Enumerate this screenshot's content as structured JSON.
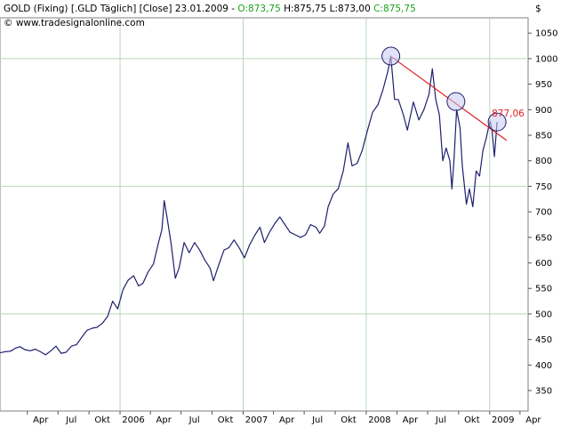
{
  "header": {
    "symbol": "GOLD (Fixing) [.GLD  Täglich] [Close]",
    "date": "23.01.2009",
    "dash": " - ",
    "open": "O:873,75",
    "high": "H:875,75",
    "low": "L:873,00",
    "close": "C:875,75",
    "watermark": "© www.tradesignalonline.com",
    "currency": "$"
  },
  "colors": {
    "price_line": "#1f1f6e",
    "trendline": "#e02020",
    "open_text": "#1aa01a",
    "close_text": "#1aa01a",
    "circle_fill": "#c8c8f0",
    "grid": "#b8d8b8",
    "annotation_text": "#e02020"
  },
  "annotation": {
    "last_value_label": "877,06"
  },
  "chart_data": {
    "type": "line",
    "title": "",
    "xlabel": "",
    "ylabel": "",
    "ylim": [
      310,
      1080
    ],
    "xlim": [
      "2005-01-10",
      "2009-04-25"
    ],
    "y_axis_side": "right",
    "y_ticks": [
      350,
      400,
      450,
      500,
      550,
      600,
      650,
      700,
      750,
      800,
      850,
      900,
      950,
      1000,
      1050
    ],
    "grid": {
      "horizontal": [
        500,
        750,
        1000
      ],
      "vertical": [
        "2006-01-01",
        "2007-01-01",
        "2008-01-01",
        "2009-01-01"
      ]
    },
    "x_ticks": [
      {
        "label": "Apr",
        "date": "2005-04-01"
      },
      {
        "label": "Jul",
        "date": "2005-07-01"
      },
      {
        "label": "Okt",
        "date": "2005-10-01"
      },
      {
        "label": "2006",
        "date": "2006-01-01"
      },
      {
        "label": "Apr",
        "date": "2006-04-01"
      },
      {
        "label": "Jul",
        "date": "2006-07-01"
      },
      {
        "label": "Okt",
        "date": "2006-10-01"
      },
      {
        "label": "2007",
        "date": "2007-01-01"
      },
      {
        "label": "Apr",
        "date": "2007-04-01"
      },
      {
        "label": "Jul",
        "date": "2007-07-01"
      },
      {
        "label": "Okt",
        "date": "2007-10-01"
      },
      {
        "label": "2008",
        "date": "2008-01-01"
      },
      {
        "label": "Apr",
        "date": "2008-04-01"
      },
      {
        "label": "Jul",
        "date": "2008-07-01"
      },
      {
        "label": "Okt",
        "date": "2008-10-01"
      },
      {
        "label": "2009",
        "date": "2009-01-01"
      },
      {
        "label": "Apr",
        "date": "2009-04-01"
      }
    ],
    "series": [
      {
        "points": [
          [
            "2005-01-10",
            424
          ],
          [
            "2005-01-25",
            426
          ],
          [
            "2005-02-10",
            427
          ],
          [
            "2005-02-25",
            433
          ],
          [
            "2005-03-10",
            436
          ],
          [
            "2005-03-25",
            430
          ],
          [
            "2005-04-10",
            428
          ],
          [
            "2005-04-25",
            431
          ],
          [
            "2005-05-10",
            426
          ],
          [
            "2005-05-25",
            420
          ],
          [
            "2005-06-10",
            428
          ],
          [
            "2005-06-25",
            437
          ],
          [
            "2005-07-10",
            423
          ],
          [
            "2005-07-25",
            425
          ],
          [
            "2005-08-10",
            437
          ],
          [
            "2005-08-25",
            440
          ],
          [
            "2005-09-10",
            455
          ],
          [
            "2005-09-25",
            468
          ],
          [
            "2005-10-10",
            472
          ],
          [
            "2005-10-25",
            474
          ],
          [
            "2005-11-10",
            482
          ],
          [
            "2005-11-25",
            495
          ],
          [
            "2005-12-10",
            525
          ],
          [
            "2005-12-25",
            510
          ],
          [
            "2006-01-10",
            548
          ],
          [
            "2006-01-25",
            566
          ],
          [
            "2006-02-10",
            575
          ],
          [
            "2006-02-25",
            555
          ],
          [
            "2006-03-10",
            560
          ],
          [
            "2006-03-25",
            582
          ],
          [
            "2006-04-10",
            598
          ],
          [
            "2006-04-25",
            640
          ],
          [
            "2006-05-05",
            665
          ],
          [
            "2006-05-12",
            722
          ],
          [
            "2006-05-20",
            690
          ],
          [
            "2006-06-01",
            640
          ],
          [
            "2006-06-14",
            570
          ],
          [
            "2006-06-25",
            590
          ],
          [
            "2006-07-10",
            640
          ],
          [
            "2006-07-25",
            620
          ],
          [
            "2006-08-10",
            640
          ],
          [
            "2006-08-25",
            625
          ],
          [
            "2006-09-10",
            605
          ],
          [
            "2006-09-25",
            590
          ],
          [
            "2006-10-05",
            565
          ],
          [
            "2006-10-20",
            595
          ],
          [
            "2006-11-05",
            625
          ],
          [
            "2006-11-20",
            630
          ],
          [
            "2006-12-05",
            645
          ],
          [
            "2006-12-20",
            630
          ],
          [
            "2007-01-05",
            610
          ],
          [
            "2007-01-20",
            635
          ],
          [
            "2007-02-05",
            655
          ],
          [
            "2007-02-20",
            670
          ],
          [
            "2007-03-05",
            640
          ],
          [
            "2007-03-20",
            660
          ],
          [
            "2007-04-05",
            677
          ],
          [
            "2007-04-20",
            690
          ],
          [
            "2007-05-05",
            675
          ],
          [
            "2007-05-20",
            660
          ],
          [
            "2007-06-05",
            655
          ],
          [
            "2007-06-20",
            650
          ],
          [
            "2007-07-05",
            655
          ],
          [
            "2007-07-20",
            675
          ],
          [
            "2007-08-05",
            670
          ],
          [
            "2007-08-16",
            658
          ],
          [
            "2007-08-30",
            672
          ],
          [
            "2007-09-10",
            710
          ],
          [
            "2007-09-25",
            735
          ],
          [
            "2007-10-10",
            745
          ],
          [
            "2007-10-25",
            780
          ],
          [
            "2007-11-08",
            835
          ],
          [
            "2007-11-20",
            790
          ],
          [
            "2007-12-05",
            795
          ],
          [
            "2007-12-20",
            820
          ],
          [
            "2008-01-05",
            860
          ],
          [
            "2008-01-20",
            895
          ],
          [
            "2008-02-05",
            910
          ],
          [
            "2008-02-20",
            940
          ],
          [
            "2008-03-05",
            975
          ],
          [
            "2008-03-14",
            1005
          ],
          [
            "2008-03-25",
            920
          ],
          [
            "2008-04-05",
            920
          ],
          [
            "2008-04-20",
            890
          ],
          [
            "2008-05-02",
            860
          ],
          [
            "2008-05-20",
            915
          ],
          [
            "2008-06-05",
            880
          ],
          [
            "2008-06-20",
            900
          ],
          [
            "2008-07-05",
            930
          ],
          [
            "2008-07-15",
            980
          ],
          [
            "2008-07-25",
            920
          ],
          [
            "2008-08-05",
            890
          ],
          [
            "2008-08-15",
            800
          ],
          [
            "2008-08-25",
            825
          ],
          [
            "2008-09-05",
            800
          ],
          [
            "2008-09-11",
            745
          ],
          [
            "2008-09-17",
            800
          ],
          [
            "2008-09-25",
            900
          ],
          [
            "2008-10-05",
            865
          ],
          [
            "2008-10-12",
            790
          ],
          [
            "2008-10-24",
            715
          ],
          [
            "2008-11-02",
            745
          ],
          [
            "2008-11-12",
            710
          ],
          [
            "2008-11-22",
            780
          ],
          [
            "2008-12-02",
            770
          ],
          [
            "2008-12-12",
            820
          ],
          [
            "2008-12-22",
            845
          ],
          [
            "2009-01-02",
            878
          ],
          [
            "2009-01-08",
            860
          ],
          [
            "2009-01-15",
            808
          ],
          [
            "2009-01-23",
            876
          ]
        ]
      }
    ],
    "trendline": {
      "from": [
        "2008-03-17",
        1003
      ],
      "to": [
        "2009-02-20",
        840
      ]
    },
    "markers": [
      {
        "date": "2008-03-14",
        "value": 1005
      },
      {
        "date": "2008-09-23",
        "value": 916
      },
      {
        "date": "2009-01-23",
        "value": 876
      }
    ]
  }
}
